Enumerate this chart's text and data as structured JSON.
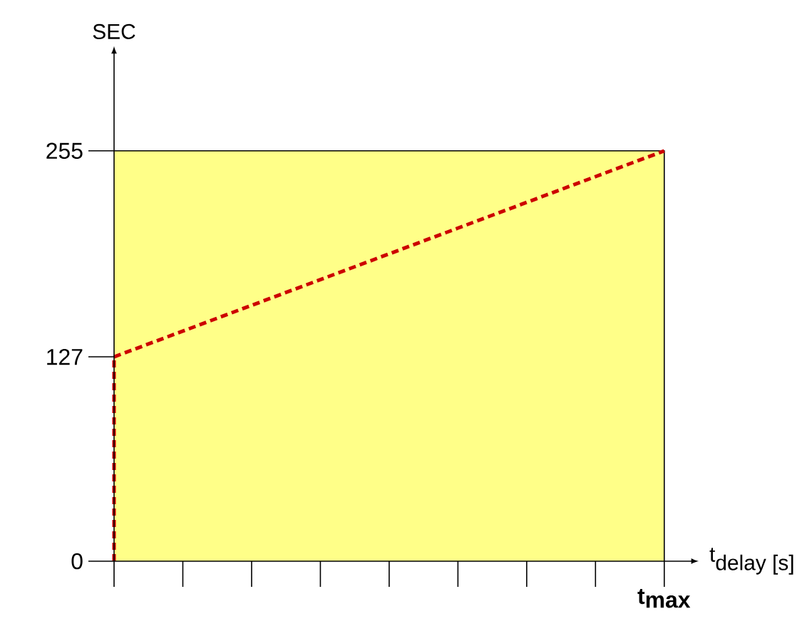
{
  "chart_data": {
    "type": "line",
    "ylabel": "SEC",
    "xlabel": "\\textnormal{t}_{\\textnormal{delay [s]}}",
    "ylim": [
      0,
      316
    ],
    "yticks": [
      {
        "value": 0,
        "label": "0"
      },
      {
        "value": 127,
        "label": "127"
      },
      {
        "value": 255,
        "label": "255"
      }
    ],
    "categories": [
      null,
      null,
      null,
      null,
      null,
      null,
      null,
      null,
      "\\textbf{t}_{\\textbf{max}}"
    ],
    "bands": [
      {
        "axis": "y",
        "from": 0,
        "to": 255,
        "color": "#ffff88"
      }
    ],
    "series": [
      {
        "color": "#cc0000",
        "line_style": "dashed",
        "values": [
          127,
          143,
          159,
          175,
          191,
          207,
          223,
          239,
          255
        ]
      }
    ]
  }
}
